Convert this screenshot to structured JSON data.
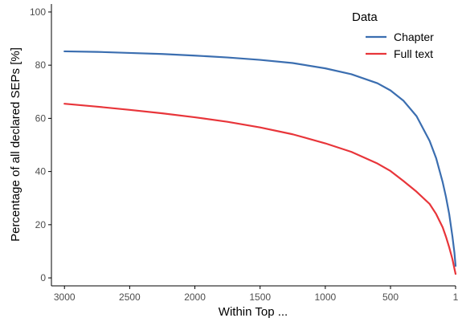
{
  "chart_data": {
    "type": "line",
    "xlabel": "Within Top ...",
    "ylabel": "Percentage of all declared SEPs [%]",
    "x_reversed": true,
    "xlim": [
      3100,
      1
    ],
    "ylim": [
      -3,
      103
    ],
    "xticks": [
      3000,
      2500,
      2000,
      1500,
      1000,
      500,
      1
    ],
    "yticks": [
      0,
      20,
      40,
      60,
      80,
      100
    ],
    "grid": false,
    "legend": {
      "title": "Data",
      "placement": "top-right"
    },
    "series": [
      {
        "name": "Chapter",
        "color": "#3B6EB0",
        "points": [
          [
            3000,
            85.2
          ],
          [
            2750,
            85.0
          ],
          [
            2500,
            84.6
          ],
          [
            2250,
            84.2
          ],
          [
            2000,
            83.6
          ],
          [
            1750,
            82.9
          ],
          [
            1500,
            82.0
          ],
          [
            1250,
            80.8
          ],
          [
            1000,
            78.8
          ],
          [
            800,
            76.6
          ],
          [
            600,
            73.2
          ],
          [
            500,
            70.5
          ],
          [
            400,
            66.6
          ],
          [
            300,
            60.8
          ],
          [
            200,
            51.5
          ],
          [
            150,
            45.0
          ],
          [
            100,
            36.0
          ],
          [
            75,
            30.5
          ],
          [
            50,
            24.0
          ],
          [
            25,
            15.5
          ],
          [
            10,
            9.5
          ],
          [
            1,
            4.5
          ]
        ]
      },
      {
        "name": "Full text",
        "color": "#E8353A",
        "points": [
          [
            3000,
            65.5
          ],
          [
            2750,
            64.4
          ],
          [
            2500,
            63.2
          ],
          [
            2250,
            61.9
          ],
          [
            2000,
            60.4
          ],
          [
            1750,
            58.7
          ],
          [
            1500,
            56.6
          ],
          [
            1250,
            54.0
          ],
          [
            1000,
            50.6
          ],
          [
            800,
            47.4
          ],
          [
            600,
            43.0
          ],
          [
            500,
            40.2
          ],
          [
            400,
            36.4
          ],
          [
            300,
            32.4
          ],
          [
            200,
            27.8
          ],
          [
            150,
            24.0
          ],
          [
            100,
            19.0
          ],
          [
            75,
            15.5
          ],
          [
            50,
            11.5
          ],
          [
            25,
            7.0
          ],
          [
            10,
            3.5
          ],
          [
            1,
            1.5
          ]
        ]
      }
    ]
  }
}
